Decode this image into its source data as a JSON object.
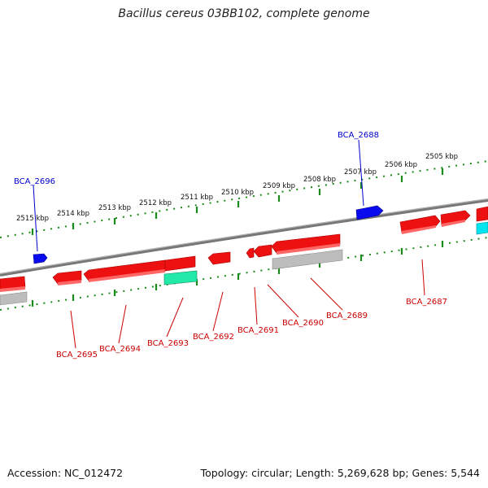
{
  "title": "Bacillus cereus 03BB102, complete genome",
  "footer": {
    "accession": "Accession: NC_012472",
    "summary": "Topology: circular; Length: 5,269,628 bp; Genes: 5,544"
  },
  "colors": {
    "forward_gene": "#ff0000",
    "reverse_gene": "#ff0000",
    "rna_teal": "#22e8a8",
    "cyan": "#00e5ee",
    "blue_gene": "#0000ee",
    "grey_gene": "#bbbbbb",
    "tick": "#1a8a1a",
    "backbone": "#7a7a7a"
  },
  "scale": {
    "unit": "kbp",
    "labels": [
      "2515 kbp",
      "2514 kbp",
      "2513 kbp",
      "2512 kbp",
      "2511 kbp",
      "2510 kbp",
      "2509 kbp",
      "2508 kbp",
      "2507 kbp",
      "2506 kbp",
      "2505 kbp"
    ]
  },
  "genes": {
    "outer": [
      {
        "label": "BCA_2696",
        "color": "blue"
      },
      {
        "label": "BCA_2688",
        "color": "blue"
      }
    ],
    "inner": [
      {
        "label": "BCA_2695"
      },
      {
        "label": "BCA_2694"
      },
      {
        "label": "BCA_2693"
      },
      {
        "label": "BCA_2692"
      },
      {
        "label": "BCA_2691"
      },
      {
        "label": "BCA_2690"
      },
      {
        "label": "BCA_2689"
      },
      {
        "label": "BCA_2687"
      }
    ]
  }
}
